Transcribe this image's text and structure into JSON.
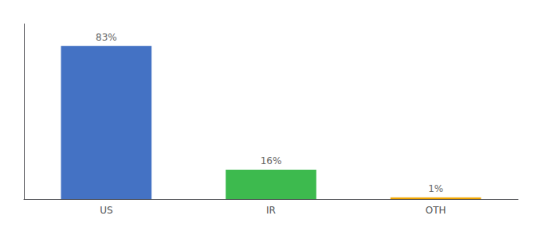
{
  "chart_data": {
    "type": "bar",
    "categories": [
      "US",
      "IR",
      "OTH"
    ],
    "values": [
      83,
      16,
      1
    ],
    "value_labels": [
      "83%",
      "16%",
      "1%"
    ],
    "colors": [
      "#4472c4",
      "#3dba4e",
      "#f0a500"
    ],
    "ylim": [
      0,
      95
    ],
    "data_labels": true,
    "tick_labels": "x",
    "grid": false
  }
}
